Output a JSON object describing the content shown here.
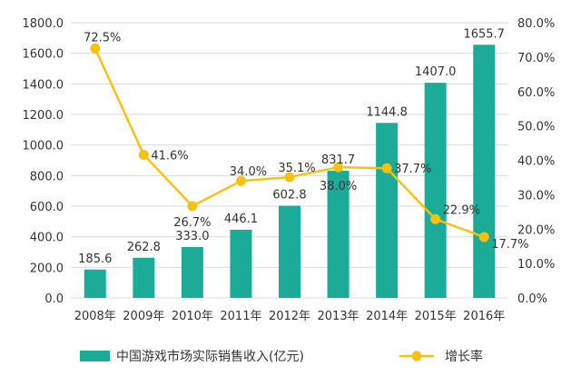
{
  "chart_data": {
    "type": "bar",
    "categories": [
      "2008年",
      "2009年",
      "2010年",
      "2011年",
      "2012年",
      "2013年",
      "2014年",
      "2015年",
      "2016年"
    ],
    "series": [
      {
        "name": "中国游戏市场实际销售收入(亿元)",
        "type": "bar",
        "axis": "left",
        "color": "#1bab98",
        "values": [
          185.6,
          262.8,
          333.0,
          446.1,
          602.8,
          831.7,
          1144.8,
          1407.0,
          1655.7
        ],
        "labels": [
          "185.6",
          "262.8",
          "333.0",
          "446.1",
          "602.8",
          "831.7",
          "1144.8",
          "1407.0",
          "1655.7"
        ]
      },
      {
        "name": "增长率",
        "type": "line",
        "axis": "right",
        "color": "#f5c214",
        "values": [
          72.5,
          41.6,
          26.7,
          34.0,
          35.1,
          38.0,
          37.7,
          22.9,
          17.7
        ],
        "labels": [
          "72.5%",
          "41.6%",
          "26.7%",
          "34.0%",
          "35.1%",
          "38.0%",
          "37.7%",
          "22.9%",
          "17.7%"
        ]
      }
    ],
    "y_left": {
      "ylim": [
        0,
        1800
      ],
      "ticks": [
        "0.0",
        "200.0",
        "400.0",
        "600.0",
        "800.0",
        "1000.0",
        "1200.0",
        "1400.0",
        "1600.0",
        "1800.0"
      ]
    },
    "y_right": {
      "ylim": [
        0,
        80
      ],
      "ticks": [
        "0.0%",
        "10.0%",
        "20.0%",
        "30.0%",
        "40.0%",
        "50.0%",
        "60.0%",
        "70.0%",
        "80.0%"
      ]
    },
    "grid": true,
    "legend": "bottom"
  }
}
